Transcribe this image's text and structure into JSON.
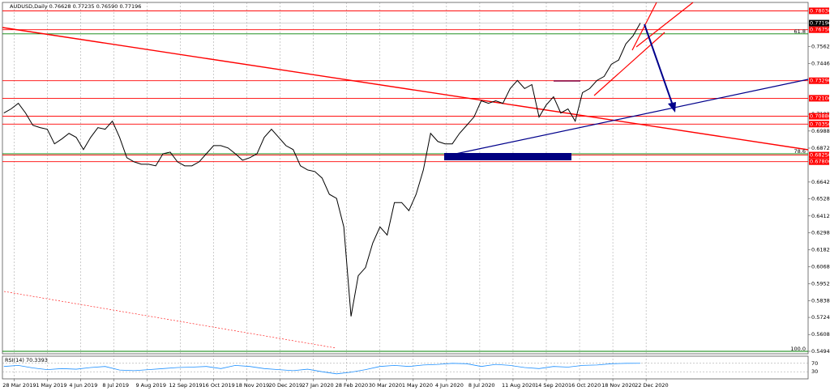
{
  "chart_data": {
    "type": "line",
    "title": "AUDUSD,Daily 0.76628 0.77235 0.76590 0.77196",
    "color": "#000000",
    "x": [
      -7,
      -2,
      3,
      8,
      13,
      18,
      23,
      28,
      33,
      38,
      43,
      48,
      53,
      58,
      63,
      68,
      73,
      78,
      83,
      88,
      93,
      98,
      103,
      108,
      113,
      118,
      123,
      128,
      133,
      138,
      143,
      148,
      153,
      158,
      163,
      168,
      173,
      178,
      183,
      188,
      193,
      198,
      203,
      208,
      213,
      218,
      223,
      228,
      233,
      238,
      243,
      248,
      253,
      258,
      263,
      268,
      273,
      278,
      283,
      288,
      293,
      298,
      303,
      308,
      313,
      318,
      323,
      328,
      333,
      338,
      343,
      348,
      353,
      358,
      363,
      368,
      373,
      378,
      383,
      388,
      393,
      398,
      403,
      408,
      413,
      418,
      423,
      428,
      433
    ],
    "values": [
      0.711,
      0.7138,
      0.7176,
      0.711,
      0.7027,
      0.7011,
      0.7,
      0.6901,
      0.6934,
      0.6972,
      0.6945,
      0.6862,
      0.6945,
      0.7011,
      0.7,
      0.7055,
      0.6945,
      0.6807,
      0.6779,
      0.6763,
      0.6763,
      0.6752,
      0.6834,
      0.6845,
      0.6779,
      0.6752,
      0.6752,
      0.6779,
      0.6834,
      0.6889,
      0.6889,
      0.6873,
      0.6834,
      0.679,
      0.6807,
      0.6834,
      0.6945,
      0.7,
      0.6945,
      0.6889,
      0.6862,
      0.6752,
      0.6724,
      0.6713,
      0.6669,
      0.6559,
      0.6531,
      0.6338,
      0.5731,
      0.6007,
      0.6062,
      0.6228,
      0.6338,
      0.6283,
      0.6503,
      0.6503,
      0.6448,
      0.6559,
      0.6724,
      0.6972,
      0.6917,
      0.6901,
      0.6901,
      0.6972,
      0.7027,
      0.7083,
      0.7193,
      0.7176,
      0.7193,
      0.7176,
      0.7276,
      0.7331,
      0.7276,
      0.7303,
      0.7083,
      0.7165,
      0.722,
      0.711,
      0.7138,
      0.7055,
      0.7248,
      0.7276,
      0.7331,
      0.7358,
      0.7441,
      0.7469,
      0.7579,
      0.7634,
      0.772
    ],
    "xlim": [
      -8,
      549
    ],
    "ylim": [
      0.5483,
      0.7838
    ],
    "xticks": [
      {
        "value": 0,
        "label": "28 Mar 2019"
      },
      {
        "value": 23,
        "label": "1 May 2019"
      },
      {
        "value": 46,
        "label": "4 Jun 2019"
      },
      {
        "value": 69,
        "label": "8 Jul 2019"
      },
      {
        "value": 92,
        "label": "9 Aug 2019"
      },
      {
        "value": 115,
        "label": "12 Sep 2019"
      },
      {
        "value": 138,
        "label": "16 Oct 2019"
      },
      {
        "value": 161,
        "label": "18 Nov 2019"
      },
      {
        "value": 184,
        "label": "20 Dec 2019"
      },
      {
        "value": 207,
        "label": "27 Jan 2020"
      },
      {
        "value": 230,
        "label": "28 Feb 2020"
      },
      {
        "value": 253,
        "label": "30 Mar 2020"
      },
      {
        "value": 276,
        "label": "1 May 2020"
      },
      {
        "value": 299,
        "label": "4 Jun 2020"
      },
      {
        "value": 322,
        "label": "8 Jul 2020"
      },
      {
        "value": 345,
        "label": "11 Aug 2020"
      },
      {
        "value": 368,
        "label": "14 Sep 2020"
      },
      {
        "value": 391,
        "label": "16 Oct 2020"
      },
      {
        "value": 414,
        "label": "18 Nov 2020"
      },
      {
        "value": 437,
        "label": "22 Dec 2020"
      }
    ],
    "yticks": [
      {
        "value": 0.7562,
        "label": "0.75620"
      },
      {
        "value": 0.7446,
        "label": "0.74460"
      },
      {
        "value": 0.7102,
        "label": "0.71020"
      },
      {
        "value": 0.6988,
        "label": "0.69880"
      },
      {
        "value": 0.6872,
        "label": "0.68720"
      },
      {
        "value": 0.6642,
        "label": "0.66420"
      },
      {
        "value": 0.6528,
        "label": "0.65280"
      },
      {
        "value": 0.6412,
        "label": "0.64120"
      },
      {
        "value": 0.6298,
        "label": "0.62980"
      },
      {
        "value": 0.6182,
        "label": "0.61820"
      },
      {
        "value": 0.6068,
        "label": "0.60680"
      },
      {
        "value": 0.5952,
        "label": "0.59520"
      },
      {
        "value": 0.5838,
        "label": "0.58380"
      },
      {
        "value": 0.5724,
        "label": "0.57240"
      },
      {
        "value": 0.5608,
        "label": "0.56080"
      },
      {
        "value": 0.5494,
        "label": "0.54940"
      }
    ],
    "levels": [
      {
        "value": 0.7803,
        "label": "0.78030"
      },
      {
        "value": 0.7675,
        "label": "0.76750"
      },
      {
        "value": 0.7329,
        "label": "0.73290"
      },
      {
        "value": 0.721,
        "label": "0.72100"
      },
      {
        "value": 0.7088,
        "label": "0.70880"
      },
      {
        "value": 0.7035,
        "label": "0.70350"
      },
      {
        "value": 0.6825,
        "label": "0.68250"
      },
      {
        "value": 0.678,
        "label": "0.67800"
      }
    ],
    "level_color": "#ff0000",
    "current": {
      "value": 0.77196,
      "label": "0.77196"
    },
    "fibo": [
      {
        "value": 0.7647,
        "label": "61.8"
      },
      {
        "value": 0.6834,
        "label": "78.6"
      },
      {
        "value": 0.5494,
        "label": "100.0"
      }
    ],
    "fibo_color": "#008000",
    "rsi": {
      "title": "RSI(14) 70.3393",
      "color": "#1e90ff",
      "x": [
        -7,
        3,
        13,
        23,
        33,
        43,
        53,
        63,
        73,
        83,
        93,
        103,
        113,
        123,
        133,
        143,
        153,
        163,
        173,
        183,
        193,
        203,
        213,
        223,
        233,
        243,
        253,
        263,
        273,
        283,
        293,
        303,
        313,
        323,
        333,
        343,
        353,
        363,
        373,
        383,
        393,
        403,
        413,
        423,
        433
      ],
      "values": [
        55,
        60,
        48,
        40,
        45,
        42,
        50,
        55,
        38,
        35,
        40,
        45,
        50,
        52,
        55,
        45,
        60,
        55,
        45,
        40,
        35,
        42,
        30,
        20,
        28,
        40,
        55,
        60,
        55,
        62,
        65,
        70,
        68,
        55,
        65,
        60,
        50,
        45,
        55,
        52,
        60,
        62,
        68,
        70,
        70.3
      ],
      "ylim": [
        0,
        100
      ],
      "yticks": [
        70,
        30
      ]
    }
  }
}
